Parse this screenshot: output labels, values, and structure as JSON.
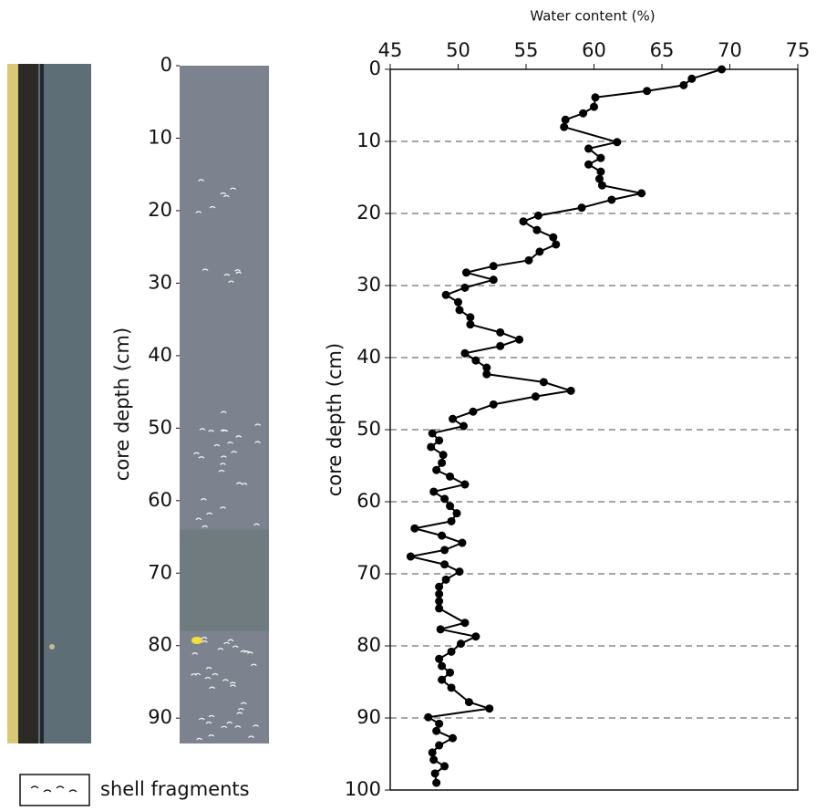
{
  "chart_data": [
    {
      "type": "column",
      "ylabel": "core depth (cm)",
      "ylim": [
        0,
        93.5
      ],
      "yticks": [
        0,
        10,
        20,
        30,
        40,
        50,
        60,
        70,
        80,
        90
      ],
      "color": "#7d838e",
      "layers": [
        {
          "top": 64,
          "bottom": 78,
          "color": "#6f7b7e"
        }
      ],
      "legend": "shell fragments"
    },
    {
      "type": "line",
      "title": "Water content (%)",
      "ylabel": "core depth (cm)",
      "color": "#000000",
      "xlim": [
        45,
        75
      ],
      "xticks": [
        45,
        50,
        55,
        60,
        65,
        70,
        75
      ],
      "ylim": [
        0,
        100
      ],
      "yticks": [
        0,
        10,
        20,
        30,
        40,
        50,
        60,
        70,
        80,
        90,
        100
      ],
      "grid": true,
      "x": [
        69.4,
        67.2,
        66.6,
        63.9,
        60.1,
        60.0,
        59.2,
        57.9,
        57.8,
        61.7,
        59.6,
        60.5,
        59.6,
        60.5,
        60.4,
        60.6,
        63.5,
        61.3,
        59.1,
        55.9,
        54.8,
        55.8,
        57.0,
        57.2,
        56.0,
        55.2,
        52.6,
        50.6,
        52.6,
        50.5,
        49.1,
        50.0,
        50.1,
        50.9,
        50.9,
        53.1,
        54.5,
        53.1,
        50.5,
        51.3,
        52.1,
        52.1,
        56.3,
        58.3,
        55.7,
        52.6,
        51.1,
        49.6,
        50.4,
        48.1,
        48.6,
        48.0,
        48.9,
        48.8,
        48.4,
        49.4,
        50.5,
        48.2,
        49.0,
        49.4,
        49.9,
        49.5,
        46.8,
        48.8,
        50.3,
        49.0,
        46.5,
        49.0,
        50.1,
        49.1,
        48.6,
        48.6,
        48.6,
        48.6,
        50.5,
        48.7,
        51.3,
        50.2,
        49.5,
        48.6,
        48.8,
        49.4,
        48.8,
        49.5,
        50.8,
        52.3,
        47.8,
        48.6,
        48.4,
        49.6,
        48.6,
        48.1,
        48.2,
        49.0,
        48.3,
        48.4
      ],
      "values": [
        0,
        1.3,
        2.2,
        3.0,
        3.9,
        5.2,
        6.1,
        7.0,
        8.0,
        10.1,
        11.0,
        12.3,
        13.2,
        14.2,
        15.2,
        16.1,
        17.2,
        18.1,
        19.2,
        20.3,
        21.1,
        22.3,
        23.3,
        24.3,
        25.3,
        26.5,
        27.3,
        28.2,
        29.2,
        30.3,
        31.3,
        32.3,
        33.4,
        34.4,
        35.4,
        36.5,
        37.5,
        38.4,
        39.4,
        40.4,
        41.4,
        42.3,
        43.4,
        44.6,
        45.4,
        46.5,
        47.5,
        48.5,
        49.5,
        50.5,
        51.5,
        52.4,
        53.5,
        54.6,
        55.6,
        56.5,
        57.6,
        58.6,
        59.6,
        60.6,
        61.6,
        62.7,
        63.7,
        64.7,
        65.7,
        66.7,
        67.6,
        68.7,
        69.7,
        70.8,
        71.8,
        72.8,
        73.8,
        74.8,
        76.8,
        77.7,
        78.7,
        79.7,
        80.8,
        81.8,
        82.8,
        83.7,
        84.7,
        85.8,
        87.8,
        88.7,
        89.9,
        90.8,
        91.8,
        92.8,
        93.8,
        94.8,
        95.8,
        96.7,
        97.7,
        99.0
      ]
    }
  ]
}
